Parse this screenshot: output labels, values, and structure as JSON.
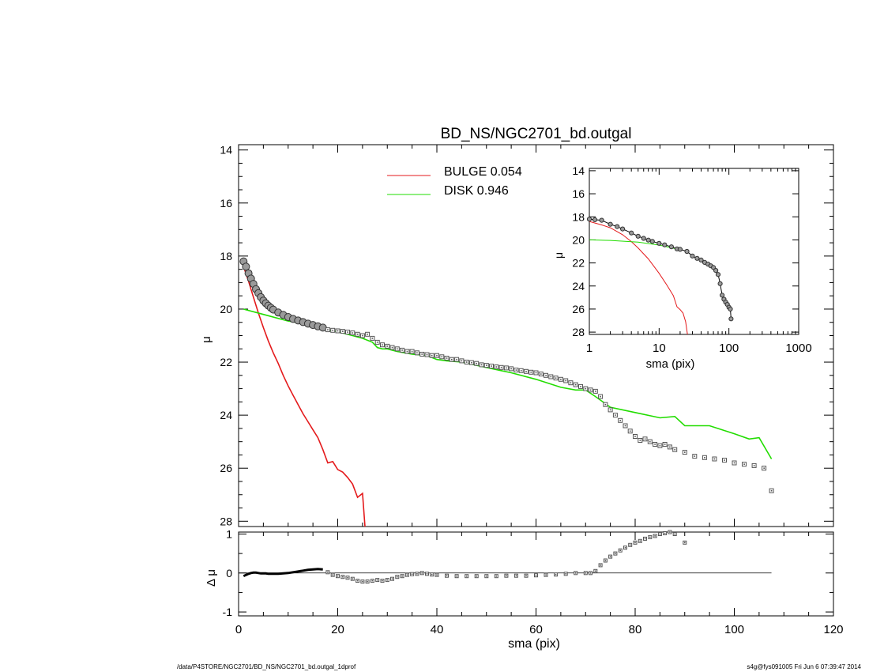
{
  "colors": {
    "bulge": "#e41a1c",
    "disk": "#22dd00",
    "data": "#555555",
    "axis": "#000000"
  },
  "footer": {
    "path": "/data/P4STORE/NGC2701/BD_NS/NGC2701_bd.outgal_1dprof",
    "stamp": "s4g@fys091005  Fri Jun  6 07:39:47 2014"
  },
  "chart_data": [
    {
      "id": "main",
      "type": "line",
      "title": "BD_NS/NGC2701_bd.outgal",
      "xlabel": "",
      "ylabel": "μ",
      "xlim": [
        0,
        120
      ],
      "ylim": [
        28.2,
        13.8
      ],
      "y_reversed": true,
      "xticks": [
        0,
        20,
        40,
        60,
        80,
        100,
        120
      ],
      "yticks": [
        14,
        16,
        18,
        20,
        22,
        24,
        26,
        28
      ],
      "legend": {
        "placement": "top-center",
        "entries": [
          {
            "label": "BULGE  0.054",
            "color": "#e41a1c"
          },
          {
            "label": "DISK  0.946",
            "color": "#22dd00"
          }
        ]
      },
      "series": [
        {
          "kind": "model-bulge",
          "x": [
            1,
            2,
            3,
            4,
            5,
            6,
            7,
            8,
            9,
            10,
            11,
            12,
            13,
            14,
            15,
            16,
            17,
            18,
            19,
            20,
            21,
            22,
            23,
            24,
            25,
            25.5
          ],
          "y": [
            18.4,
            18.95,
            19.55,
            20.15,
            20.7,
            21.2,
            21.65,
            22.05,
            22.5,
            22.9,
            23.25,
            23.6,
            23.95,
            24.25,
            24.55,
            24.85,
            25.3,
            25.8,
            25.75,
            26.05,
            26.15,
            26.35,
            26.6,
            27.1,
            26.95,
            28.2
          ]
        },
        {
          "kind": "model-disk",
          "x": [
            1,
            5,
            10,
            15,
            18,
            20,
            22,
            25,
            27,
            28,
            29,
            30,
            32,
            35,
            38,
            40,
            42,
            45,
            50,
            55,
            60,
            65,
            68,
            70,
            72,
            75,
            80,
            85,
            88,
            90,
            95,
            100,
            103,
            105,
            107.5
          ],
          "y": [
            20.0,
            20.2,
            20.45,
            20.6,
            20.8,
            20.85,
            20.95,
            21.1,
            21.25,
            21.45,
            21.5,
            21.5,
            21.6,
            21.7,
            21.75,
            21.9,
            21.95,
            22.0,
            22.2,
            22.4,
            22.65,
            22.95,
            23.05,
            23.05,
            23.3,
            23.7,
            23.9,
            24.1,
            24.05,
            24.4,
            24.4,
            24.7,
            24.9,
            24.85,
            25.65
          ]
        },
        {
          "kind": "observed-dense",
          "x": [
            1,
            1.5,
            2,
            2.5,
            3,
            3.5,
            4,
            4.5,
            5,
            5.5,
            6,
            6.5,
            7,
            8,
            9,
            10,
            11,
            12,
            13,
            14,
            15,
            16,
            17
          ],
          "y": [
            18.2,
            18.4,
            18.65,
            18.85,
            19.05,
            19.25,
            19.4,
            19.55,
            19.68,
            19.78,
            19.87,
            19.95,
            20.02,
            20.13,
            20.22,
            20.3,
            20.37,
            20.43,
            20.49,
            20.55,
            20.6,
            20.65,
            20.7
          ]
        },
        {
          "kind": "observed-points",
          "x": [
            18,
            19,
            20,
            21,
            22,
            23,
            24,
            25,
            26,
            27,
            28,
            29,
            30,
            31,
            32,
            33,
            34,
            35,
            36,
            37,
            38,
            39,
            40,
            41,
            42,
            43,
            44,
            45,
            46,
            47,
            48,
            49,
            50,
            51,
            52,
            53,
            54,
            55,
            56,
            57,
            58,
            59,
            60,
            61,
            62,
            63,
            64,
            65,
            66,
            67,
            68,
            69,
            70,
            71,
            72,
            73,
            74,
            75,
            76,
            77,
            78,
            79,
            80,
            81,
            82,
            83,
            84,
            85,
            86,
            87,
            88,
            90,
            92,
            94,
            96,
            98,
            100,
            102,
            104,
            106,
            107.5
          ],
          "y": [
            20.78,
            20.8,
            20.82,
            20.84,
            20.87,
            20.9,
            20.95,
            21.0,
            20.95,
            21.1,
            21.25,
            21.35,
            21.4,
            21.45,
            21.5,
            21.55,
            21.6,
            21.6,
            21.65,
            21.7,
            21.72,
            21.75,
            21.75,
            21.8,
            21.85,
            21.9,
            21.9,
            21.95,
            22.0,
            22.02,
            22.05,
            22.1,
            22.12,
            22.15,
            22.18,
            22.2,
            22.22,
            22.25,
            22.3,
            22.32,
            22.35,
            22.38,
            22.4,
            22.45,
            22.5,
            22.55,
            22.6,
            22.65,
            22.7,
            22.78,
            22.85,
            22.92,
            23.0,
            23.05,
            23.1,
            23.3,
            23.6,
            23.8,
            24.0,
            24.2,
            24.4,
            24.6,
            24.8,
            24.95,
            24.9,
            25.0,
            25.1,
            25.15,
            25.1,
            25.2,
            25.3,
            25.4,
            25.55,
            25.6,
            25.65,
            25.7,
            25.8,
            25.85,
            25.9,
            26.0,
            26.85
          ]
        }
      ]
    },
    {
      "id": "residual",
      "type": "scatter",
      "xlabel": "sma (pix)",
      "ylabel": "Δ μ",
      "xlim": [
        0,
        120
      ],
      "ylim": [
        -1.1,
        1.05
      ],
      "xticks": [
        0,
        20,
        40,
        60,
        80,
        100,
        120
      ],
      "yticks": [
        -1,
        0,
        1
      ],
      "zero_line_xmax": 107.5,
      "series": [
        {
          "kind": "residual-dense",
          "x": [
            1,
            1.5,
            2,
            2.5,
            3,
            3.5,
            4,
            4.5,
            5,
            5.5,
            6,
            6.5,
            7,
            7.5,
            8,
            9,
            10,
            11,
            12,
            13,
            14,
            15,
            16,
            17
          ],
          "y": [
            -0.08,
            -0.05,
            -0.02,
            0.0,
            0.01,
            0.01,
            0.0,
            -0.01,
            -0.01,
            -0.01,
            -0.02,
            -0.02,
            -0.02,
            -0.02,
            -0.02,
            -0.01,
            0.0,
            0.02,
            0.04,
            0.06,
            0.08,
            0.09,
            0.1,
            0.09
          ]
        },
        {
          "kind": "residual-points",
          "x": [
            18,
            19,
            20,
            21,
            22,
            23,
            24,
            25,
            26,
            27,
            28,
            29,
            30,
            31,
            32,
            33,
            34,
            35,
            36,
            37,
            38,
            39,
            40,
            42,
            44,
            46,
            48,
            50,
            52,
            54,
            56,
            58,
            60,
            62,
            64,
            66,
            68,
            70,
            71,
            72,
            73,
            74,
            75,
            76,
            77,
            78,
            79,
            80,
            81,
            82,
            83,
            84,
            85,
            86,
            87,
            88,
            90
          ],
          "y": [
            0.02,
            -0.05,
            -0.08,
            -0.1,
            -0.12,
            -0.15,
            -0.2,
            -0.22,
            -0.22,
            -0.2,
            -0.18,
            -0.2,
            -0.18,
            -0.15,
            -0.1,
            -0.08,
            -0.05,
            -0.03,
            -0.02,
            0.0,
            -0.02,
            -0.04,
            -0.05,
            -0.07,
            -0.08,
            -0.08,
            -0.08,
            -0.08,
            -0.08,
            -0.07,
            -0.07,
            -0.07,
            -0.06,
            -0.05,
            -0.04,
            -0.02,
            0.0,
            0.0,
            0.0,
            0.05,
            0.2,
            0.32,
            0.42,
            0.5,
            0.58,
            0.65,
            0.72,
            0.78,
            0.82,
            0.88,
            0.92,
            0.95,
            1.0,
            1.02,
            1.05,
            1.0,
            0.78
          ]
        }
      ]
    },
    {
      "id": "inset",
      "type": "line",
      "xlabel": "sma (pix)",
      "ylabel": "μ",
      "x_scale": "log",
      "xlim": [
        1,
        1000
      ],
      "ylim": [
        28.2,
        13.8
      ],
      "y_reversed": true,
      "xticks": [
        1,
        10,
        100,
        1000
      ],
      "xtick_labels": [
        "1",
        "10",
        "100",
        "1000"
      ],
      "yticks": [
        14,
        16,
        18,
        20,
        22,
        24,
        26,
        28
      ],
      "series": [
        {
          "kind": "model-bulge",
          "x": [
            1,
            1.5,
            2,
            3,
            4,
            5,
            7,
            10,
            13,
            16,
            18,
            20,
            22,
            24,
            25.5
          ],
          "y": [
            18.4,
            18.7,
            18.95,
            19.55,
            20.15,
            20.7,
            21.65,
            22.9,
            23.95,
            24.85,
            25.8,
            26.05,
            26.35,
            27.1,
            28.2
          ]
        },
        {
          "kind": "model-disk",
          "x": [
            1,
            2,
            5,
            10,
            20
          ],
          "y": [
            20.0,
            20.05,
            20.2,
            20.45,
            20.85
          ]
        },
        {
          "kind": "observed-dense",
          "x": [
            1,
            1.2,
            1.5,
            2,
            2.5,
            3,
            4,
            5,
            6,
            7,
            8,
            10,
            12,
            15,
            18,
            20,
            25,
            30,
            35,
            40,
            45,
            50,
            55,
            60,
            65,
            70,
            75,
            80,
            85,
            90,
            95,
            100,
            105,
            107.5
          ],
          "y": [
            18.2,
            18.25,
            18.3,
            18.65,
            18.85,
            19.05,
            19.4,
            19.68,
            19.87,
            20.02,
            20.13,
            20.3,
            20.43,
            20.6,
            20.78,
            20.82,
            21.0,
            21.4,
            21.6,
            21.75,
            21.95,
            22.1,
            22.25,
            22.4,
            22.65,
            23.0,
            23.8,
            24.8,
            25.15,
            25.4,
            25.6,
            25.85,
            26.0,
            26.85
          ]
        }
      ]
    }
  ]
}
